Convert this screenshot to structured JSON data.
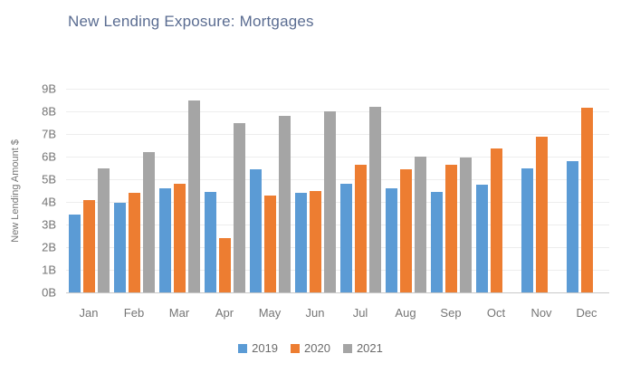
{
  "chart_data": {
    "type": "bar",
    "title": "New Lending Exposure: Mortgages",
    "title_color": "#5a6c91",
    "xlabel": "",
    "ylabel": "New Lending Amount $",
    "categories": [
      "Jan",
      "Feb",
      "Mar",
      "Apr",
      "May",
      "Jun",
      "Jul",
      "Aug",
      "Sep",
      "Oct",
      "Nov",
      "Dec"
    ],
    "series": [
      {
        "name": "2019",
        "color": "#5B9BD5",
        "values": [
          3.45,
          3.95,
          4.6,
          4.45,
          5.45,
          4.4,
          4.8,
          4.6,
          4.45,
          4.75,
          5.5,
          5.8
        ]
      },
      {
        "name": "2020",
        "color": "#ED7D31",
        "values": [
          4.1,
          4.4,
          4.8,
          2.4,
          4.3,
          4.5,
          5.65,
          5.45,
          5.65,
          6.35,
          6.9,
          8.15
        ]
      },
      {
        "name": "2021",
        "color": "#A5A5A5",
        "values": [
          5.5,
          6.2,
          8.5,
          7.5,
          7.8,
          8.0,
          8.2,
          6.0,
          5.95,
          null,
          null,
          null
        ]
      }
    ],
    "ylim": [
      0,
      9
    ],
    "yticks": [
      "0B",
      "1B",
      "2B",
      "3B",
      "4B",
      "5B",
      "6B",
      "7B",
      "8B",
      "9B"
    ],
    "grid": true,
    "legend_position": "bottom",
    "colors": {
      "axis_text": "#757575",
      "gridline": "#ededed",
      "axis_line": "#c8c8c8"
    }
  }
}
